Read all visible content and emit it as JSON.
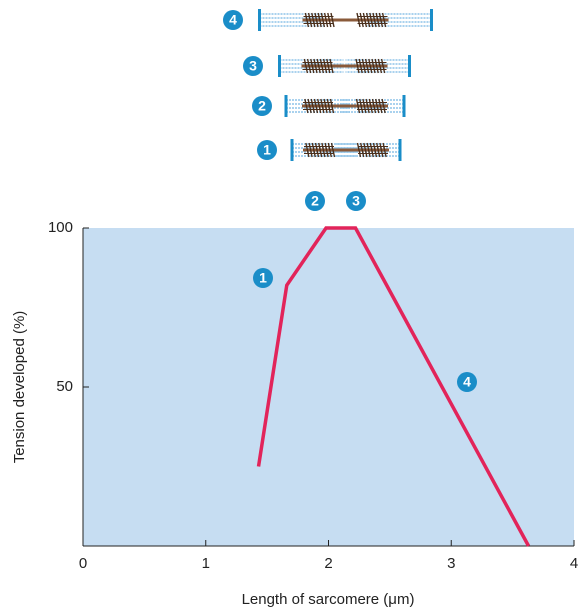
{
  "chart_data": {
    "type": "line",
    "x_label": "Length of sarcomere (μm)",
    "y_label": "Tension developed (%)",
    "x": [
      1.43,
      1.66,
      1.98,
      2.22,
      3.63
    ],
    "values": [
      25,
      82,
      100,
      100,
      0
    ],
    "color": "#e2245a",
    "background": "#c6ddf2",
    "xlim": [
      0,
      4
    ],
    "xticks": [
      0,
      1,
      2,
      3,
      4
    ],
    "ylim": [
      0,
      100
    ],
    "yticks": [
      50,
      100
    ],
    "grid": false,
    "annotations": [
      "1",
      "2",
      "3",
      "4"
    ],
    "diagram_labels": [
      "4",
      "3",
      "2",
      "1"
    ]
  }
}
